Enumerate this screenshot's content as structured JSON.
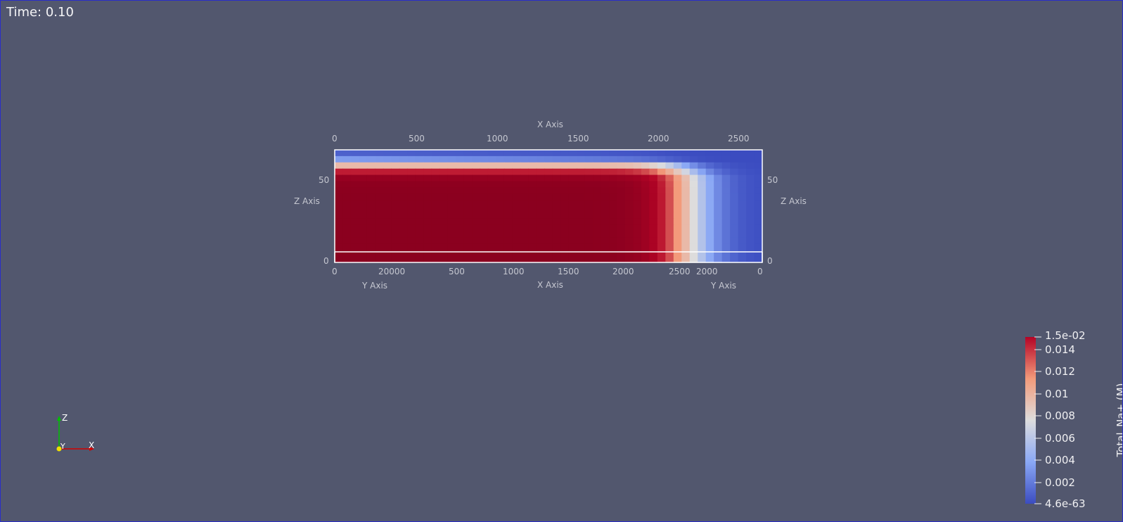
{
  "time_label": "Time: 0.10",
  "axes": {
    "top_x_title": "X Axis",
    "bottom_x_title": "X Axis",
    "left_z_title": "Z Axis",
    "right_z_title": "Z Axis",
    "bottom_left_y_title": "Y Axis",
    "bottom_right_y_title": "Y Axis",
    "top_x_ticks": [
      "0",
      "500",
      "1000",
      "1500",
      "2000",
      "2500"
    ],
    "bottom_x_ticks": [
      "500",
      "1000",
      "1500",
      "2000",
      "2500"
    ],
    "left_y_ticks": [
      "0",
      "20000"
    ],
    "right_y_ticks": [
      "2000",
      "0"
    ],
    "left_z_ticks": [
      "50",
      "0"
    ],
    "right_z_ticks": [
      "50",
      "0"
    ]
  },
  "orientation_axes": {
    "z": "Z",
    "y": "Y",
    "x": "X"
  },
  "colorbar": {
    "title": "Total_Na+ (M)",
    "max_label": "1.5e-02",
    "min_label": "4.6e-63",
    "ticks": [
      "0.014",
      "0.012",
      "0.01",
      "0.008",
      "0.006",
      "0.004",
      "0.002"
    ],
    "colormap": "Cool to Warm",
    "low_color": "#3b4cc0",
    "mid_color": "#dddddd",
    "high_color": "#b40426",
    "saturated_color": "#8b001f"
  }
}
